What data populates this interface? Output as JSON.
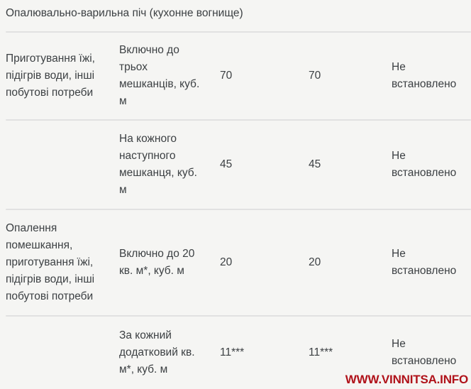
{
  "page": {
    "background_color": "#f5f5f3",
    "text_color": "#3c4043",
    "divider_color": "#e1e1e1"
  },
  "table": {
    "header": "Опалювально-варильна піч (кухонне вогнище)",
    "rows": [
      {
        "category": "Приготування їжі,\nпідігрів води, інші\nпобутові потреби",
        "condition": "Включно до\nтрьох\nмешканців, куб.\nм",
        "value_a": "70",
        "value_b": "70",
        "value_c": "Не\nвстановлено"
      },
      {
        "category": "",
        "condition": "На кожного\nнаступного\nмешканця, куб.\nм",
        "value_a": "45",
        "value_b": "45",
        "value_c": "Не\nвстановлено"
      },
      {
        "category": "Опалення\nпомешкання,\nприготування їжі,\nпідігрів води, інші\nпобутові потреби",
        "condition": "Включно до 20\nкв. м*, куб. м",
        "value_a": "20",
        "value_b": "20",
        "value_c": "Не\nвстановлено"
      },
      {
        "category": "",
        "condition": "За кожний\nдодатковий кв.\nм*, куб. м",
        "value_a": "11***",
        "value_b": "11***",
        "value_c": "Не\nвстановлено"
      }
    ]
  },
  "watermark": {
    "text": "WWW.VINNITSA.INFO",
    "color": "#b0121a"
  }
}
